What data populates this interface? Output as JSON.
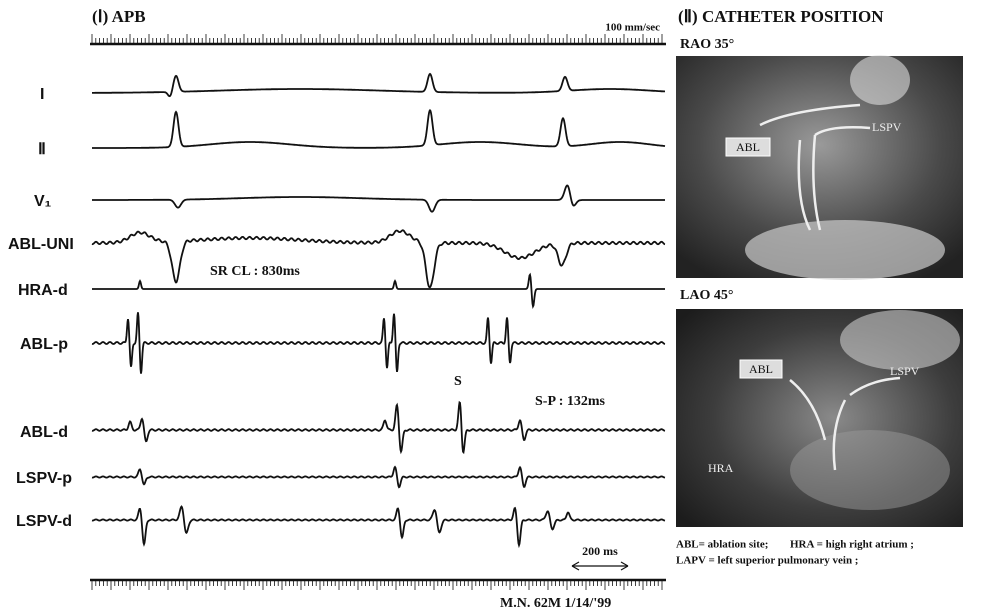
{
  "panel_1": {
    "title": "(Ⅰ) APB",
    "speed": "100 mm/sec",
    "leads": [
      "I",
      "Ⅱ",
      "V₁",
      "ABL-UNI",
      "HRA-d",
      "ABL-p",
      "ABL-d",
      "LSPV-p",
      "LSPV-d"
    ],
    "annotations": {
      "cycle_length": "SR CL : 830ms",
      "stimulus": "S",
      "interval": "S-P : 132ms",
      "scale": "200 ms"
    },
    "footer": "M.N. 62M 1/14/'99"
  },
  "panel_2": {
    "title": "(Ⅱ) CATHETER POSITION",
    "views": [
      {
        "label": "RAO 35°",
        "markers": [
          "ABL",
          "LSPV"
        ]
      },
      {
        "label": "LAO 45°",
        "markers": [
          "ABL",
          "LSPV",
          "HRA"
        ]
      }
    ],
    "legend": [
      "ABL= ablation site;",
      "HRA = high  right atrium ;",
      "LAPV = left superior pulmonary vein ;"
    ]
  }
}
